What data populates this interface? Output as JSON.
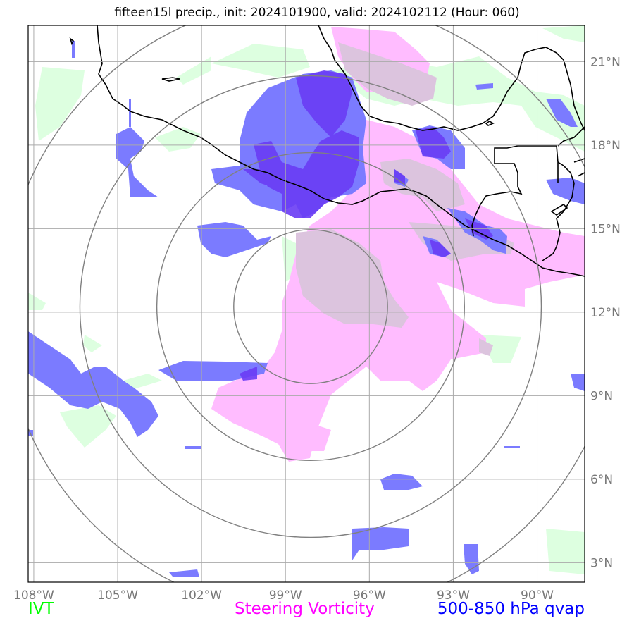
{
  "title": "fifteen15l precip., init: 2024101900, valid: 2024102112 (Hour: 060)",
  "legend": [
    {
      "label": "IVT",
      "color": "#00ff00"
    },
    {
      "label": "Steering Vorticity",
      "color": "#ff00ff"
    },
    {
      "label": "500-850 hPa qvap",
      "color": "#0000ff"
    }
  ],
  "colors": {
    "ivt_fill": "#ddffe0",
    "vorticity_fill": "#ffbcff",
    "qvap_fill": "#7b7bff",
    "qvap_dark": "#6a3cf5",
    "overlap": "#dcc4de",
    "coast": "#000000",
    "grid": "#aaaaaa",
    "rings": "#808080"
  },
  "map": {
    "lon_range": [
      -108.2,
      -88.3
    ],
    "lat_range": [
      2.3,
      22.3
    ],
    "lon_ticks": [
      {
        "value": -108,
        "label": "108°W"
      },
      {
        "value": -105,
        "label": "105°W"
      },
      {
        "value": -102,
        "label": "102°W"
      },
      {
        "value": -99,
        "label": "99°W"
      },
      {
        "value": -96,
        "label": "96°W"
      },
      {
        "value": -93,
        "label": "93°W"
      },
      {
        "value": -90,
        "label": "90°W"
      }
    ],
    "lat_ticks": [
      {
        "value": 21,
        "label": "21°N"
      },
      {
        "value": 18,
        "label": "18°N"
      },
      {
        "value": 15,
        "label": "15°N"
      },
      {
        "value": 12,
        "label": "12°N"
      },
      {
        "value": 9,
        "label": "9°N"
      },
      {
        "value": 6,
        "label": "6°N"
      },
      {
        "value": 3,
        "label": "3°N"
      }
    ],
    "storm_center": {
      "lon": -98.1,
      "lat": 12.2
    },
    "range_rings_deg": [
      2.75,
      5.5,
      8.25,
      11.0
    ]
  }
}
